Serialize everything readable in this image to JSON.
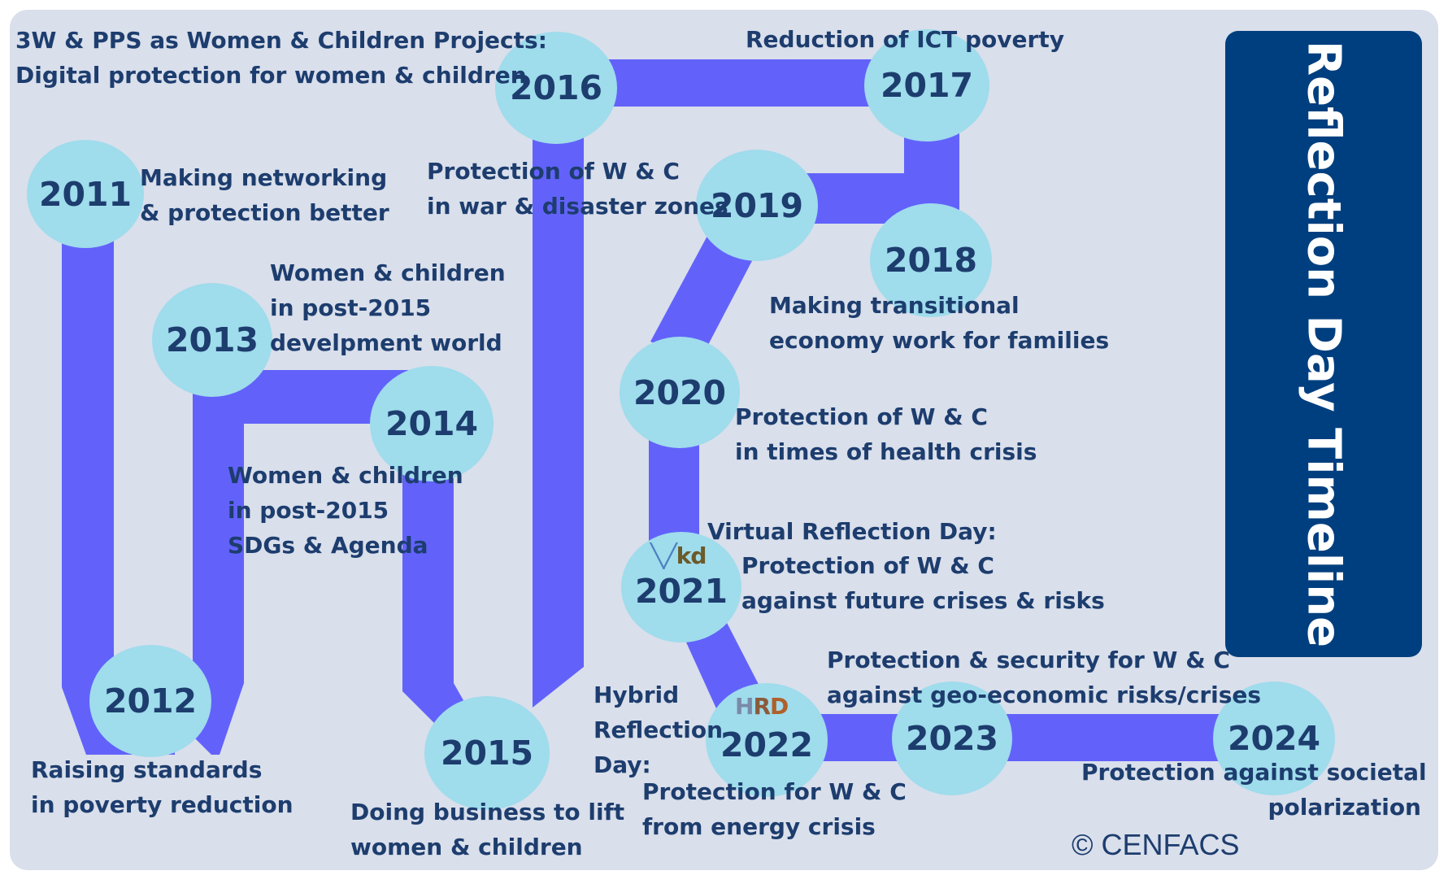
{
  "title": "Reflection Day Timeline",
  "copyright": "© CENFACS",
  "colors": {
    "background": "#d9dfeb",
    "path": "#6262fb",
    "node": "#9fdcec",
    "text": "#1d3d6e",
    "title_box": "#003f7f",
    "title_text": "#ffffff"
  },
  "years": {
    "y2011": "2011",
    "y2012": "2012",
    "y2013": "2013",
    "y2014": "2014",
    "y2015": "2015",
    "y2016": "2016",
    "y2017": "2017",
    "y2018": "2018",
    "y2019": "2019",
    "y2020": "2020",
    "y2021": "2021",
    "y2022": "2022",
    "y2023": "2023",
    "y2024": "2024"
  },
  "labels": {
    "l2011": [
      "Making networking",
      "& protection better"
    ],
    "l2012": [
      "Raising standards",
      "in poverty reduction"
    ],
    "l2013": [
      "Women & children",
      "in post-2015",
      "develpment world"
    ],
    "l2014": [
      "Women & children",
      "in post-2015",
      "SDGs & Agenda"
    ],
    "l2015": [
      "Doing business to lift",
      "women & children"
    ],
    "l2016": [
      "3W & PPS as Women & Children Projects:",
      "Digital protection for women & children"
    ],
    "l2017": [
      "Reduction of ICT poverty"
    ],
    "l2018": [
      "Making transitional",
      "economy work for families"
    ],
    "l2019": [
      "Protection of W & C",
      "in war & disaster zones"
    ],
    "l2020": [
      "Protection of W & C",
      "in times of health crisis"
    ],
    "l2021_head": "Virtual Reflection Day:",
    "l2021": [
      "Protection of W & C",
      "against future crises & risks"
    ],
    "l2022_head": [
      "Hybrid",
      "Reflection",
      "Day:"
    ],
    "l2022": [
      "Protection for W & C",
      "from energy crisis"
    ],
    "l2023": [
      "Protection & security for W & C",
      "against geo-economic risks/crises"
    ],
    "l2024": [
      "Protection against societal",
      "polarization"
    ]
  },
  "icons": {
    "logo_2021": "vrd-logo-icon",
    "logo_2022": "hrd-logo-icon"
  }
}
